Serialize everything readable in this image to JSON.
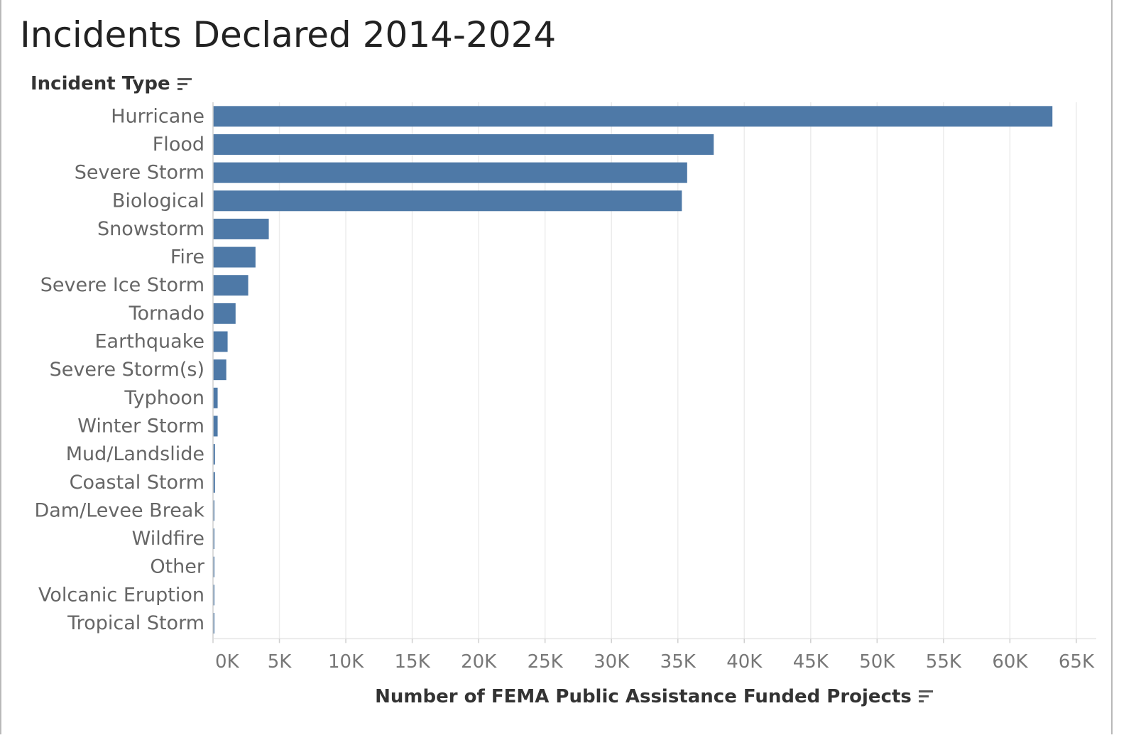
{
  "title": "Incidents Declared 2014-2024",
  "chart_data": {
    "type": "bar",
    "orientation": "horizontal",
    "ylabel": "Incident Type",
    "xlabel": "Number of FEMA Public Assistance Funded Projects",
    "categories": [
      "Hurricane",
      "Flood",
      "Severe Storm",
      "Biological",
      "Snowstorm",
      "Fire",
      "Severe Ice Storm",
      "Tornado",
      "Earthquake",
      "Severe Storm(s)",
      "Typhoon",
      "Winter Storm",
      "Mud/Landslide",
      "Coastal Storm",
      "Dam/Levee Break",
      "Wildfire",
      "Other",
      "Volcanic Eruption",
      "Tropical Storm"
    ],
    "values": [
      63200,
      37700,
      35700,
      35300,
      4200,
      3200,
      2650,
      1700,
      1100,
      1000,
      350,
      350,
      150,
      150,
      50,
      50,
      50,
      50,
      50
    ],
    "xlim": [
      0,
      66500
    ],
    "xticks": [
      0,
      5000,
      10000,
      15000,
      20000,
      25000,
      30000,
      35000,
      40000,
      45000,
      50000,
      55000,
      60000,
      65000
    ],
    "xtick_labels": [
      "0K",
      "5K",
      "10K",
      "15K",
      "20K",
      "25K",
      "30K",
      "35K",
      "40K",
      "45K",
      "50K",
      "55K",
      "60K",
      "65K"
    ],
    "grid": true,
    "bar_color": "#4e79a7",
    "grid_color": "#ececec"
  }
}
